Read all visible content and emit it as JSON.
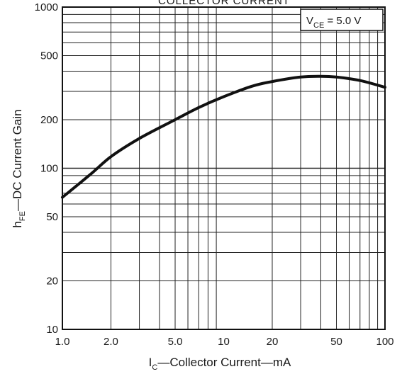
{
  "chart_data": {
    "type": "line",
    "title": "COLLECTOR CURRENT",
    "xlabel": {
      "main": "I",
      "sub": "C",
      "rest": "—Collector  Current—mA"
    },
    "ylabel": {
      "main": "h",
      "sub": "FE",
      "rest": "—DC  Current  Gain"
    },
    "annotation": {
      "main": "V",
      "sub": "CE",
      "rest": " = 5.0 V"
    },
    "xscale": "log",
    "yscale": "log",
    "xlim": [
      1,
      100
    ],
    "ylim": [
      10,
      1000
    ],
    "grid": true,
    "xticks": [
      {
        "value": 1,
        "label": "1.0"
      },
      {
        "value": 2,
        "label": "2.0"
      },
      {
        "value": 5,
        "label": "5.0"
      },
      {
        "value": 10,
        "label": "10"
      },
      {
        "value": 20,
        "label": "20"
      },
      {
        "value": 50,
        "label": "50"
      },
      {
        "value": 100,
        "label": "100"
      }
    ],
    "yticks": [
      {
        "value": 10,
        "label": "10"
      },
      {
        "value": 20,
        "label": "20"
      },
      {
        "value": 50,
        "label": "50"
      },
      {
        "value": 100,
        "label": "100"
      },
      {
        "value": 200,
        "label": "200"
      },
      {
        "value": 500,
        "label": "500"
      },
      {
        "value": 1000,
        "label": "1000"
      }
    ],
    "series": [
      {
        "x": [
          1.0,
          1.5,
          2.0,
          3.0,
          5.0,
          7.0,
          10,
          15,
          20,
          30,
          40,
          50,
          70,
          100
        ],
        "y": [
          66,
          92,
          118,
          153,
          200,
          238,
          278,
          323,
          345,
          368,
          372,
          368,
          350,
          318
        ]
      }
    ],
    "colors": {
      "line": "#111111",
      "grid": "#222222",
      "background": "#ffffff"
    }
  }
}
